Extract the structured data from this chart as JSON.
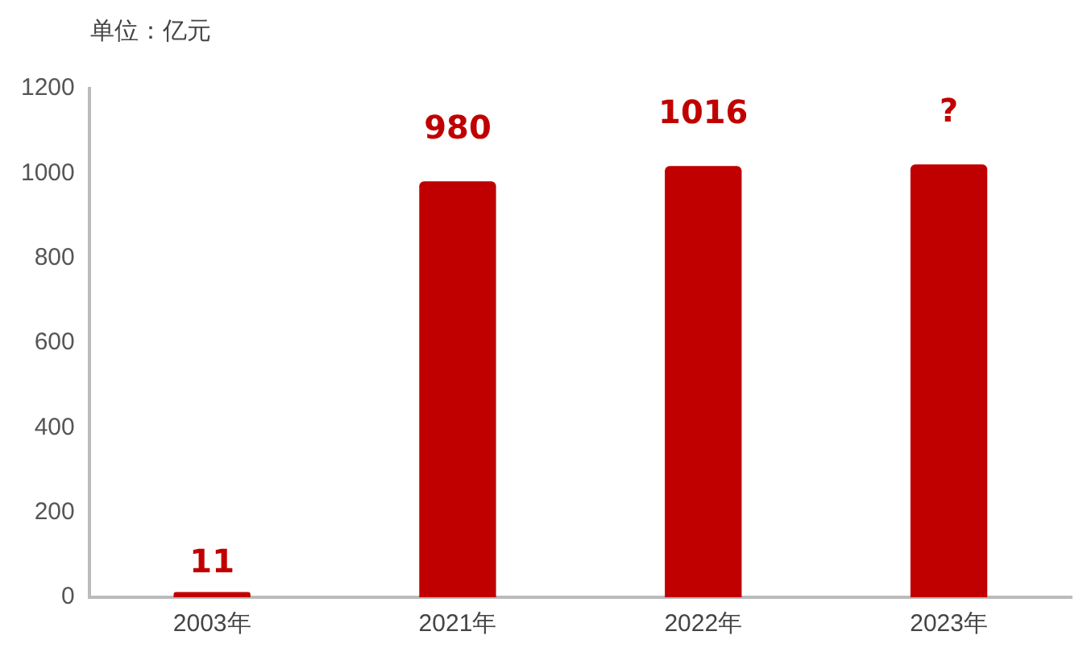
{
  "chart_data": {
    "type": "bar",
    "ylabel": "单位：亿元",
    "categories": [
      "2003年",
      "2021年",
      "2022年",
      "2023年"
    ],
    "values": [
      11,
      980,
      1016,
      1020
    ],
    "color": "#c00000",
    "value_labels": [
      "11",
      "980",
      "1016",
      "?"
    ],
    "ylim": [
      0,
      1200
    ],
    "yticks": [
      0,
      200,
      400,
      600,
      800,
      1000,
      1200
    ],
    "grid": false,
    "legend": false
  }
}
